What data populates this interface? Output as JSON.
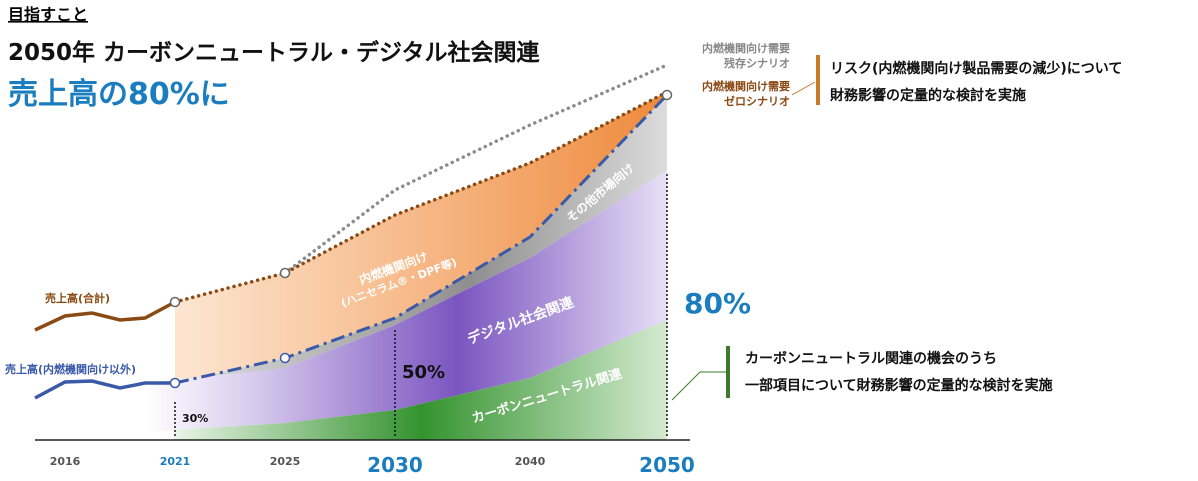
{
  "header": {
    "label": "目指すこと"
  },
  "title": {
    "line1": "2050年 カーボンニュートラル・デジタル社会関連",
    "line2": "売上高の80%に"
  },
  "line_labels": {
    "total": "売上高(合計)",
    "non_ice": "売上高(内燃機関向け以外)"
  },
  "scenarios": {
    "remain": [
      "内燃機関向け需要",
      "残存シナリオ"
    ],
    "zero": [
      "内燃機関向け需要",
      "ゼロシナリオ"
    ]
  },
  "areas": {
    "ice": [
      "内燃機関向け",
      "(ハニセラム®・DPF等)"
    ],
    "other": "その他市場向け",
    "digital": "デジタル社会関連",
    "carbon": "カーボンニュートラル関連"
  },
  "shares": [
    "30%",
    "50%",
    "80%"
  ],
  "years": [
    "2016",
    "2021",
    "2025",
    "2030",
    "2040",
    "2050"
  ],
  "notes": {
    "risk": [
      "リスク(内燃機関向け製品需要の減少)について",
      "財務影響の定量的な検討を実施"
    ],
    "opportunity": [
      "カーボンニュートラル関連の機会のうち",
      "一部項目について財務影響の定量的な検討を実施"
    ]
  }
}
